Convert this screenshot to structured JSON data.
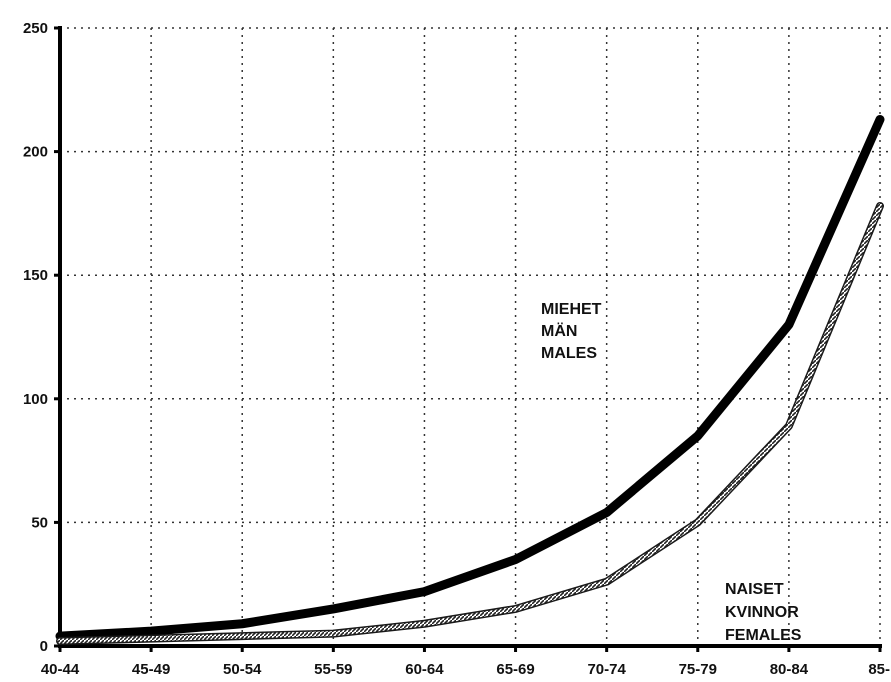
{
  "chart_data": {
    "type": "line",
    "categories": [
      "40-44",
      "45-49",
      "50-54",
      "55-59",
      "60-64",
      "65-69",
      "70-74",
      "75-79",
      "80-84",
      "85-"
    ],
    "ylim": [
      0,
      250
    ],
    "yticks": [
      0,
      50,
      100,
      150,
      200,
      250
    ],
    "grid": true,
    "series": [
      {
        "name": "MIEHET MÄN MALES",
        "values": [
          4,
          6,
          9,
          15,
          22,
          35,
          54,
          85,
          130,
          213
        ],
        "color": "#000000",
        "style": "thick-solid"
      },
      {
        "name": "NAISET KVINNOR FEMALES",
        "values": [
          2,
          3,
          4,
          5,
          9,
          15,
          26,
          50,
          89,
          178
        ],
        "color": "#555555",
        "style": "hatched"
      }
    ],
    "annotations": [
      {
        "series": 0,
        "lines": [
          "MIEHET",
          "MÄN",
          "MALES"
        ]
      },
      {
        "series": 1,
        "lines": [
          "NAISET",
          "KVINNOR",
          "FEMALES"
        ]
      }
    ]
  }
}
